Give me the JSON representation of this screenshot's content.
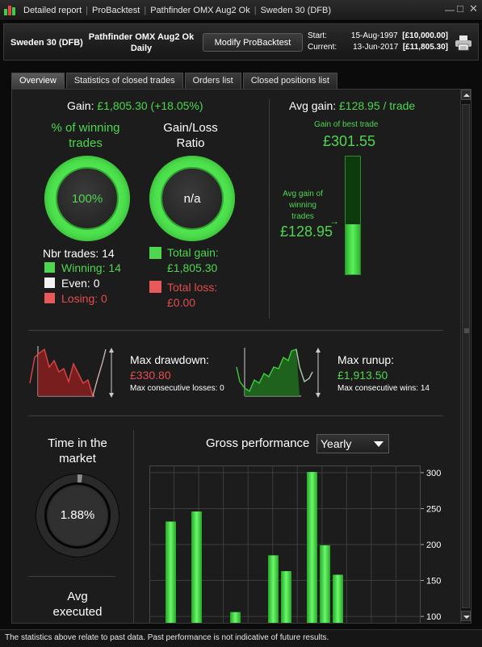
{
  "titlebar": {
    "segments": [
      "Detailed report",
      "ProBacktest",
      "Pathfinder OMX Aug2 Ok",
      "Sweden 30 (DFB)"
    ]
  },
  "header": {
    "instrument": "Sweden 30 (DFB)",
    "strategy": "Pathfinder OMX Aug2 Ok",
    "period": "Daily",
    "modify_button": "Modify ProBacktest",
    "start_label": "Start:",
    "start_date": "15-Aug-1997",
    "start_value": "[£10,000.00]",
    "current_label": "Current:",
    "current_date": "13-Jun-2017",
    "current_value": "[£11,805.30]"
  },
  "tabs": [
    "Overview",
    "Statistics of closed trades",
    "Orders list",
    "Closed positions list"
  ],
  "overview": {
    "gain_label": "Gain:",
    "gain_value": "£1,805.30 (+18.05%)",
    "pct_winning_title_1": "% of winning",
    "pct_winning_title_2": "trades",
    "pct_winning_value": "100%",
    "gl_ratio_title_1": "Gain/Loss",
    "gl_ratio_title_2": "Ratio",
    "gl_ratio_value": "n/a",
    "nbr_trades": "Nbr trades: 14",
    "winning": "Winning: 14",
    "even": "Even: 0",
    "losing": "Losing: 0",
    "total_gain_label": "Total gain:",
    "total_gain_value": "£1,805.30",
    "total_loss_label": "Total loss:",
    "total_loss_value": "£0.00",
    "avg_gain_label": "Avg gain:",
    "avg_gain_value": "£128.95 / trade",
    "best_trade_label": "Gain of best trade",
    "best_trade_value": "£301.55",
    "avg_winning_label_1": "Avg gain of",
    "avg_winning_label_2": "winning",
    "avg_winning_label_3": "trades",
    "avg_winning_value": "£128.95",
    "avg_to_best_fraction": 0.428,
    "max_drawdown_label": "Max drawdown:",
    "max_drawdown_value": "£330.80",
    "max_consec_losses": "Max consecutive losses: 0",
    "max_runup_label": "Max runup:",
    "max_runup_value": "£1,913.50",
    "max_consec_wins": "Max consecutive wins: 14",
    "time_in_market_1": "Time in the",
    "time_in_market_2": "market",
    "time_in_market_value": "1.88%",
    "time_in_market_fraction": 0.0188,
    "avg_executed_1": "Avg",
    "avg_executed_2": "executed",
    "gross_perf_label": "Gross performance",
    "gross_perf_period": "Yearly"
  },
  "colors": {
    "gain_green": "#4fd64f",
    "loss_red": "#e44d4d",
    "even_white": "#f2f2f2"
  },
  "chart_data": {
    "type": "bar",
    "title": "Gross performance",
    "series": [
      {
        "values": [
          232,
          246,
          106,
          185,
          163,
          301,
          199,
          158
        ]
      }
    ],
    "ylim": [
      90,
      310
    ],
    "yticks": [
      100,
      150,
      200,
      250,
      300
    ],
    "grid": true
  },
  "footer": {
    "disclaimer": "The statistics above relate to past data. Past performance is not indicative of future results."
  }
}
